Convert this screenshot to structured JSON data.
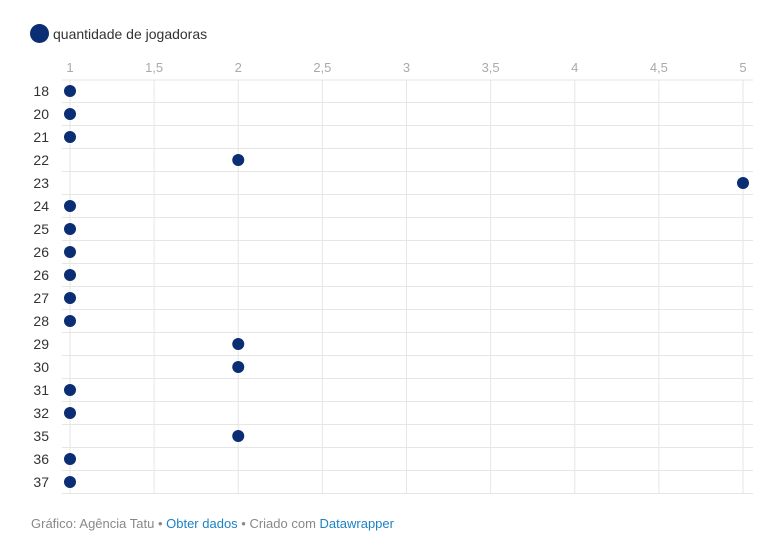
{
  "colors": {
    "dot": "#0b2d74",
    "grid": "#e6e6e6",
    "tick_x": "#aaaaaa",
    "tick_y": "#333333",
    "link": "#1d81c4"
  },
  "legend": {
    "label": "quantidade de jogadoras"
  },
  "footer": {
    "prefix": "Gráfico: Agência Tatu",
    "sep1": " • ",
    "get_data": "Obter dados",
    "sep2": " • ",
    "created_with": "Criado com ",
    "tool": "Datawrapper"
  },
  "chart_data": {
    "type": "scatter",
    "x_ticks": [
      "1",
      "1,5",
      "2",
      "2,5",
      "3",
      "3,5",
      "4",
      "4,5",
      "5"
    ],
    "xlim": [
      1,
      5
    ],
    "grid": true,
    "legend_position": "top-left",
    "series": [
      {
        "name": "quantidade de jogadoras",
        "categories": [
          "18",
          "20",
          "21",
          "22",
          "23",
          "24",
          "25",
          "26",
          "26",
          "27",
          "28",
          "29",
          "30",
          "31",
          "32",
          "35",
          "36",
          "37"
        ],
        "values": [
          1,
          1,
          1,
          2,
          5,
          1,
          1,
          1,
          1,
          1,
          1,
          2,
          2,
          1,
          1,
          2,
          1,
          1
        ]
      }
    ]
  }
}
